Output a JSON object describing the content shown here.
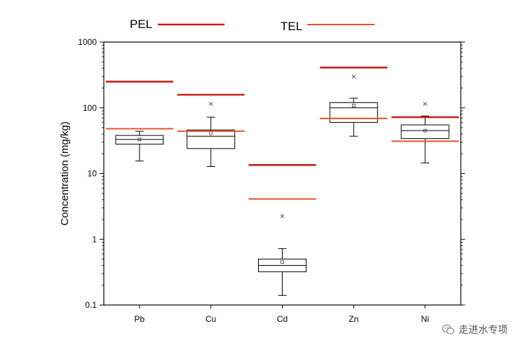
{
  "chart_data": {
    "type": "box",
    "title": "",
    "xlabel": "",
    "ylabel": "Concentration (mg/kg)",
    "yscale": "log",
    "ylim": [
      0.1,
      1000
    ],
    "yticks": [
      "0.1",
      "1",
      "10",
      "100",
      "1000"
    ],
    "categories": [
      "Pb",
      "Cu",
      "Cd",
      "Zn",
      "Ni"
    ],
    "boxes": [
      {
        "name": "Pb",
        "whisker_low": 15.5,
        "q1": 28,
        "median": 33,
        "q3": 38,
        "whisker_high": 44,
        "mean": 33,
        "outliers": []
      },
      {
        "name": "Cu",
        "whisker_low": 12.8,
        "q1": 24,
        "median": 37,
        "q3": 46,
        "whisker_high": 72,
        "mean": 41,
        "outliers": [
          115
        ]
      },
      {
        "name": "Cd",
        "whisker_low": 0.14,
        "q1": 0.32,
        "median": 0.4,
        "q3": 0.5,
        "whisker_high": 0.72,
        "mean": 0.45,
        "outliers": [
          2.25
        ]
      },
      {
        "name": "Zn",
        "whisker_low": 37,
        "q1": 60,
        "median": 100,
        "q3": 120,
        "whisker_high": 140,
        "mean": 108,
        "outliers": [
          300
        ]
      },
      {
        "name": "Ni",
        "whisker_low": 14.5,
        "q1": 34,
        "median": 45,
        "q3": 55,
        "whisker_high": 75,
        "mean": 45,
        "outliers": [
          115
        ]
      }
    ],
    "reference_lines": {
      "PEL": {
        "label": "PEL",
        "color": "#cc1f1a",
        "values": [
          250,
          158,
          13.5,
          410,
          72
        ]
      },
      "TEL": {
        "label": "TEL",
        "color": "#e8542c",
        "values": [
          48,
          44,
          4.1,
          69,
          31
        ]
      }
    }
  },
  "watermark": {
    "text": "走进水专项",
    "icon": "wechat-icon"
  }
}
